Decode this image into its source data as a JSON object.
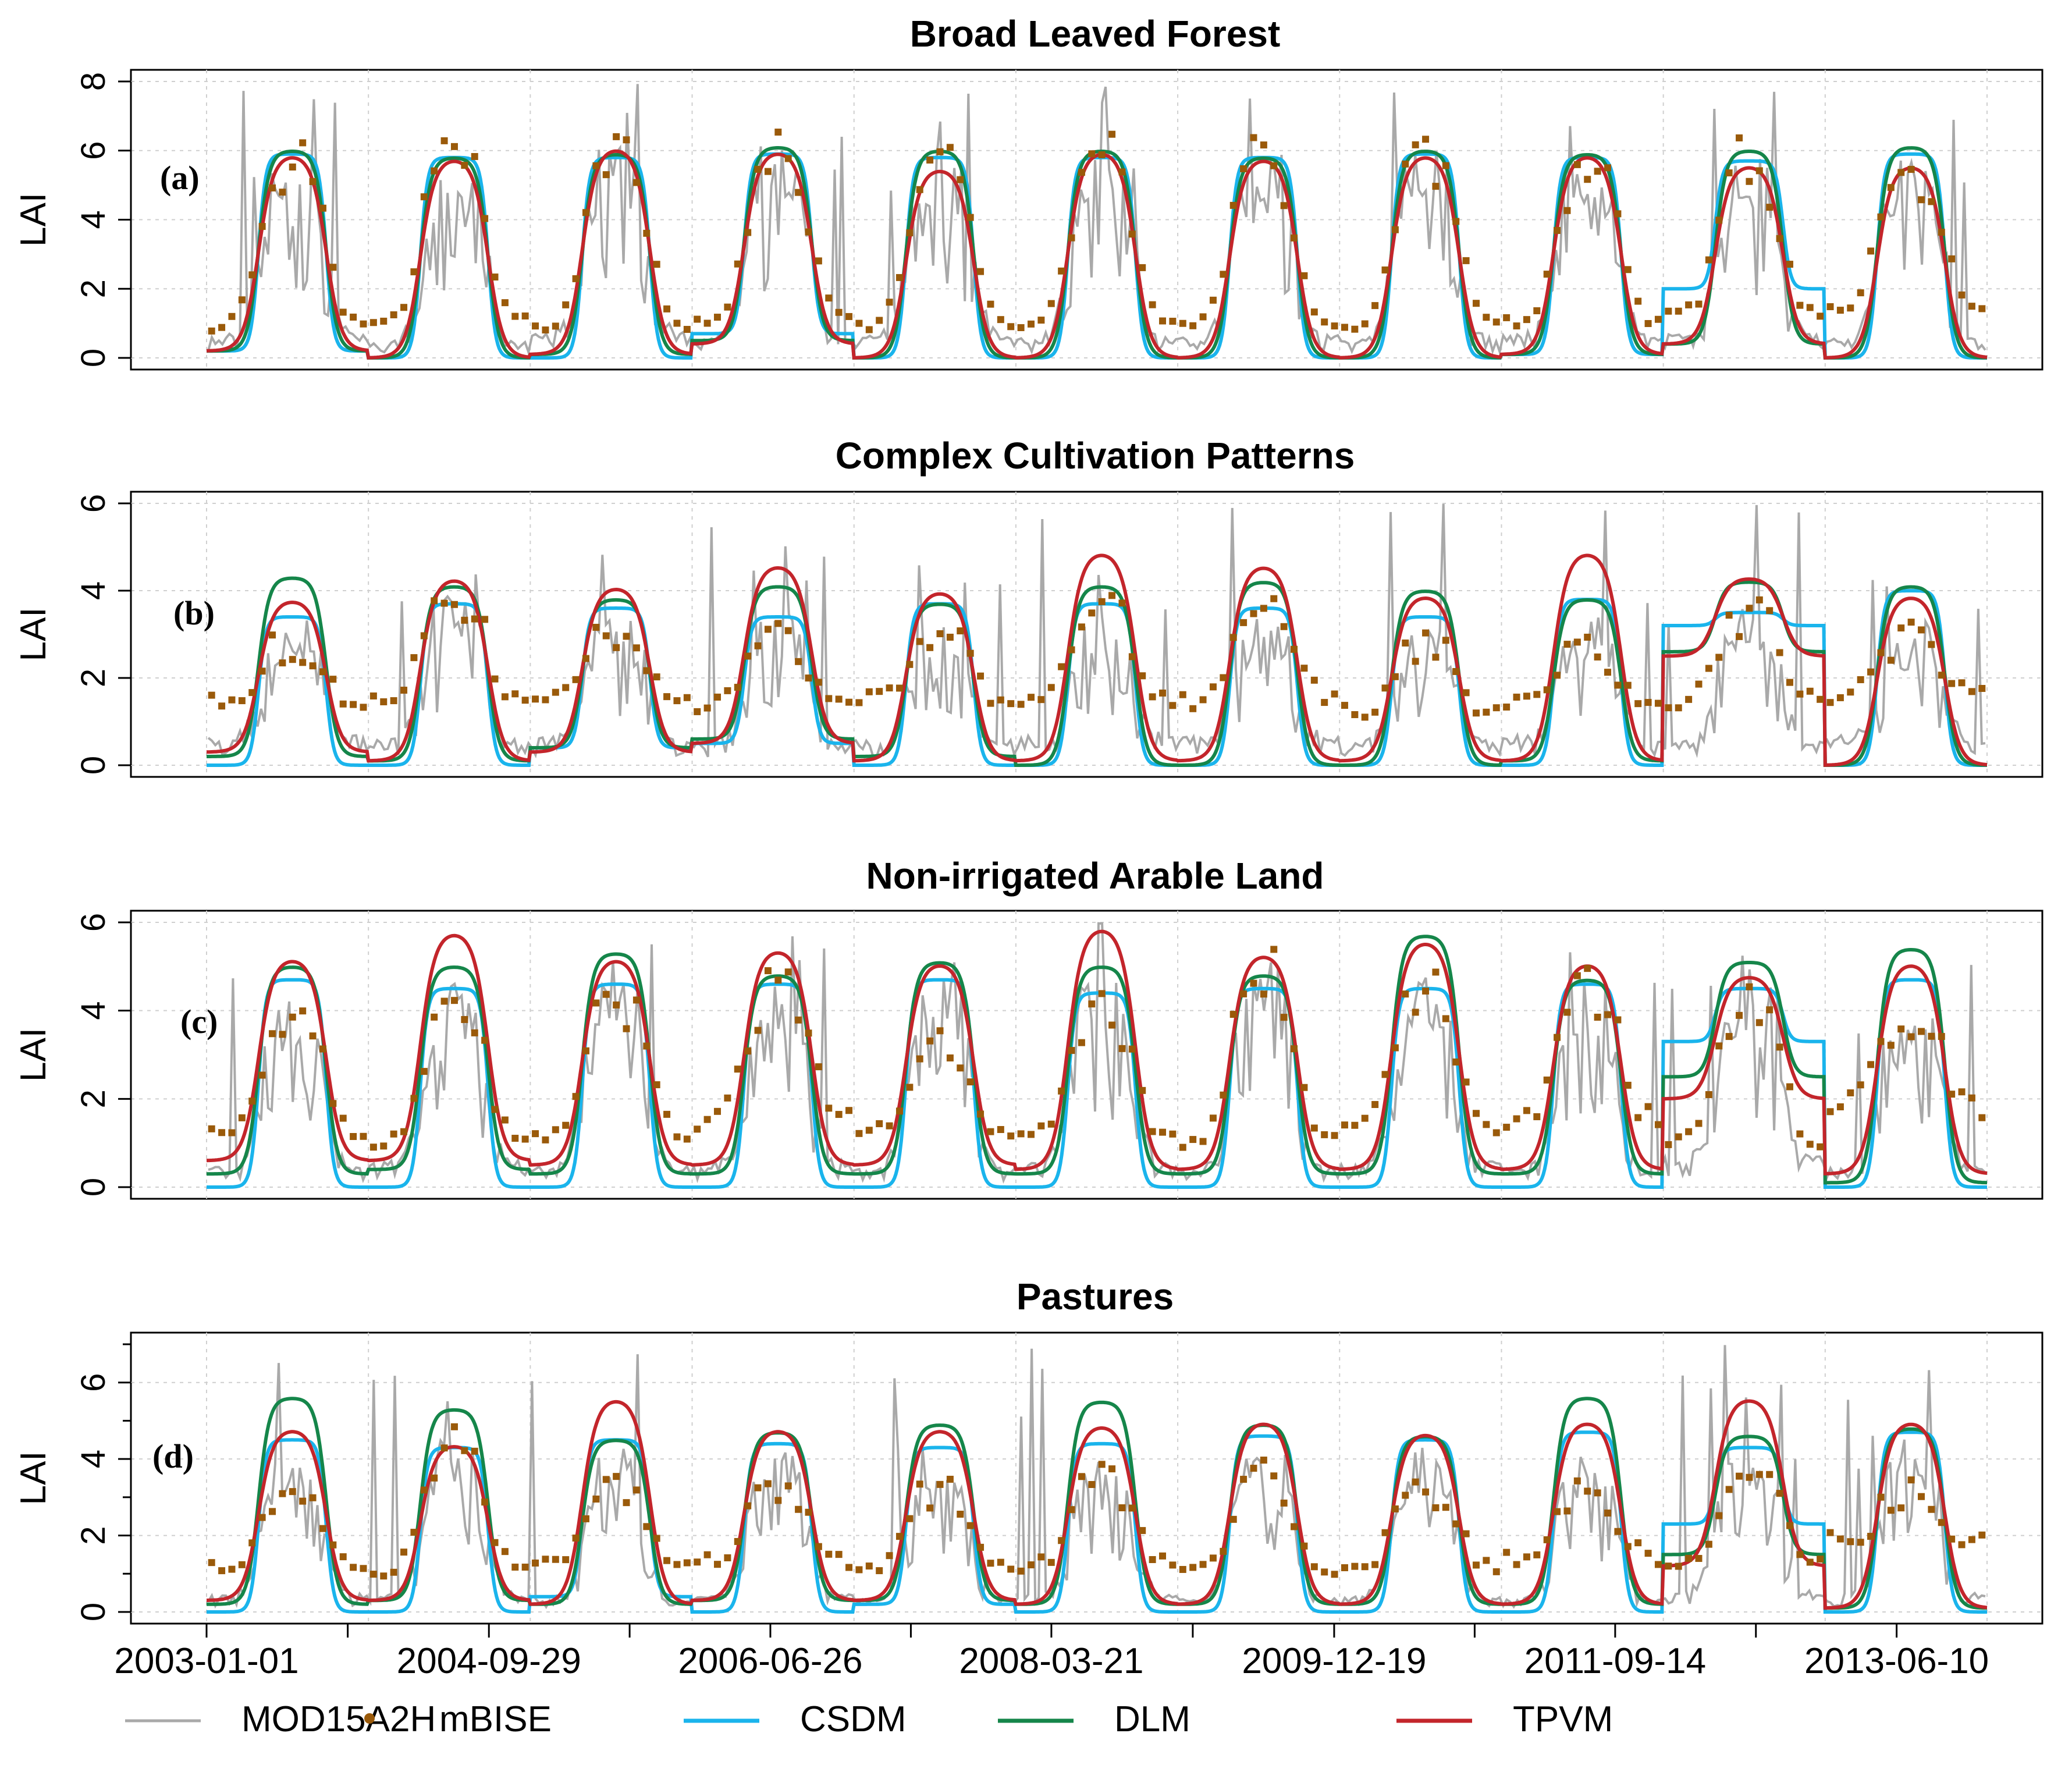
{
  "chart_data": {
    "type": "line",
    "x_range": [
      "2003-01-01",
      "2014-01-01"
    ],
    "x_tick_labels": [
      "2003-01-01",
      "2004-09-29",
      "2006-06-26",
      "2008-03-21",
      "2009-12-19",
      "2011-09-14",
      "2013-06-10"
    ],
    "ylabel": "LAI",
    "legend": {
      "placement": "bottom",
      "entries": [
        {
          "name": "MOD15A2H",
          "symbol": "line",
          "color": "#a9a9a9"
        },
        {
          "name": "mBISE",
          "symbol": "point",
          "color": "#9a5a0a"
        },
        {
          "name": "CSDM",
          "symbol": "line",
          "color": "#1ab4ec"
        },
        {
          "name": "DLM",
          "symbol": "line",
          "color": "#15864a"
        },
        {
          "name": "TPVM",
          "symbol": "line",
          "color": "#c3252b"
        }
      ]
    },
    "panels": [
      {
        "id": "a",
        "tag": "(a)",
        "title": "Broad Leaved Forest",
        "ylim": [
          0,
          8
        ],
        "yticks": [
          0,
          2,
          4,
          6,
          8
        ],
        "seasonal": {
          "MOD15A2H": {
            "base": [
              0.6,
              0.4,
              0.7,
              0.5,
              0.6,
              0.5,
              0.6,
              0.5,
              0.6,
              0.6,
              0.5
            ],
            "peak": [
              5.6,
              5.4,
              5.6,
              5.7,
              5.4,
              5.6,
              5.5,
              5.6,
              5.3,
              5.2,
              5.4
            ]
          },
          "mBISE": {
            "base": [
              0.9,
              1.1,
              0.8,
              1.0,
              0.9,
              1.0,
              1.0,
              0.9,
              1.0,
              1.2,
              1.5
            ],
            "peak": [
              5.8,
              5.9,
              6.0,
              6.0,
              5.8,
              5.9,
              5.9,
              6.0,
              5.7,
              5.8,
              5.6
            ]
          },
          "CSDM": {
            "base": [
              0.2,
              0.0,
              0.0,
              0.7,
              0.0,
              0.0,
              0.0,
              0.0,
              0.1,
              2.0,
              0.0
            ],
            "peak": [
              5.9,
              5.8,
              5.8,
              5.9,
              5.8,
              5.8,
              5.8,
              5.9,
              5.8,
              5.7,
              5.9
            ]
          },
          "DLM": {
            "base": [
              0.2,
              0.0,
              0.1,
              0.5,
              0.0,
              0.0,
              0.0,
              0.0,
              0.1,
              0.4,
              0.0
            ],
            "peak": [
              6.0,
              5.8,
              5.9,
              6.1,
              6.0,
              6.0,
              5.8,
              6.0,
              5.9,
              6.0,
              6.1
            ]
          },
          "TPVM": {
            "base": [
              0.2,
              0.0,
              0.1,
              0.4,
              0.0,
              0.0,
              0.0,
              0.0,
              0.1,
              0.4,
              0.0
            ],
            "peak": [
              5.9,
              5.8,
              6.1,
              6.0,
              5.5,
              6.0,
              5.8,
              5.9,
              5.9,
              5.6,
              5.6
            ]
          }
        }
      },
      {
        "id": "b",
        "tag": "(b)",
        "title": "Complex Cultivation Patterns",
        "ylim": [
          0,
          6
        ],
        "yticks": [
          0,
          2,
          4,
          6
        ],
        "seasonal": {
          "MOD15A2H": {
            "base": [
              0.6,
              0.5,
              0.6,
              0.5,
              0.5,
              0.6,
              0.6,
              0.5,
              0.6,
              0.5,
              0.6
            ],
            "peak": [
              3.0,
              3.5,
              3.1,
              3.2,
              3.0,
              3.1,
              3.2,
              2.9,
              3.0,
              3.2,
              3.0
            ]
          },
          "mBISE": {
            "base": [
              1.5,
              1.5,
              1.4,
              1.3,
              1.5,
              1.4,
              1.5,
              1.2,
              1.4,
              1.5,
              1.6
            ],
            "peak": [
              2.8,
              3.9,
              3.1,
              3.0,
              3.0,
              3.6,
              3.5,
              2.8,
              2.6,
              3.4,
              2.9
            ]
          },
          "CSDM": {
            "base": [
              0.0,
              0.0,
              0.4,
              0.5,
              0.0,
              0.0,
              0.0,
              0.0,
              0.0,
              3.2,
              0.0
            ],
            "peak": [
              3.4,
              3.7,
              3.6,
              3.4,
              3.7,
              3.7,
              3.6,
              3.4,
              3.8,
              3.5,
              4.0
            ]
          },
          "DLM": {
            "base": [
              0.2,
              0.1,
              0.4,
              0.6,
              0.2,
              0.0,
              0.0,
              0.0,
              0.1,
              2.6,
              0.0
            ],
            "peak": [
              4.3,
              4.1,
              3.8,
              4.1,
              3.7,
              4.1,
              4.2,
              4.0,
              3.8,
              4.2,
              4.1
            ]
          },
          "TPVM": {
            "base": [
              0.3,
              0.1,
              0.3,
              0.5,
              0.1,
              0.1,
              0.1,
              0.1,
              0.1,
              2.5,
              0.0
            ],
            "peak": [
              3.8,
              4.3,
              4.1,
              4.6,
              4.0,
              4.9,
              4.6,
              3.9,
              4.9,
              4.3,
              3.9
            ]
          }
        }
      },
      {
        "id": "c",
        "tag": "(c)",
        "title": "Non-irrigated Arable Land",
        "ylim": [
          0,
          6
        ],
        "yticks": [
          0,
          2,
          4,
          6
        ],
        "seasonal": {
          "MOD15A2H": {
            "base": [
              0.4,
              0.5,
              0.4,
              0.5,
              0.4,
              0.5,
              0.4,
              0.5,
              0.4,
              0.6,
              0.4
            ],
            "peak": [
              3.8,
              4.2,
              4.5,
              4.4,
              4.6,
              4.4,
              4.8,
              4.2,
              4.3,
              4.4,
              4.0
            ]
          },
          "mBISE": {
            "base": [
              1.2,
              1.0,
              1.2,
              1.5,
              1.2,
              1.1,
              1.0,
              1.3,
              1.5,
              1.0,
              1.8
            ],
            "peak": [
              3.9,
              4.2,
              4.2,
              4.5,
              3.5,
              4.1,
              5.0,
              4.5,
              4.6,
              4.3,
              4.0
            ]
          },
          "CSDM": {
            "base": [
              0.0,
              0.0,
              0.0,
              0.0,
              0.0,
              0.0,
              0.0,
              0.0,
              0.0,
              3.3,
              0.0
            ],
            "peak": [
              4.7,
              4.5,
              4.6,
              4.6,
              4.7,
              4.4,
              4.5,
              4.5,
              4.6,
              4.5,
              4.7
            ]
          },
          "DLM": {
            "base": [
              0.3,
              0.4,
              0.3,
              0.3,
              0.3,
              0.3,
              0.3,
              0.3,
              0.3,
              2.5,
              0.1
            ],
            "peak": [
              5.0,
              5.0,
              5.3,
              4.8,
              5.1,
              5.0,
              4.8,
              5.7,
              4.7,
              5.1,
              5.4
            ]
          },
          "TPVM": {
            "base": [
              0.6,
              0.6,
              0.5,
              0.5,
              0.5,
              0.4,
              0.4,
              0.4,
              0.4,
              2.0,
              0.3
            ],
            "peak": [
              5.2,
              5.8,
              5.2,
              5.4,
              5.1,
              5.9,
              5.3,
              5.6,
              5.1,
              4.8,
              5.1
            ]
          }
        }
      },
      {
        "id": "d",
        "tag": "(d)",
        "title": "Pastures",
        "ylim": [
          0,
          7
        ],
        "yticks": [
          0,
          2,
          4,
          6
        ],
        "seasonal": {
          "MOD15A2H": {
            "base": [
              0.4,
              0.4,
              0.3,
              0.4,
              0.3,
              0.4,
              0.3,
              0.4,
              0.3,
              0.5,
              0.4
            ],
            "peak": [
              3.6,
              4.2,
              3.8,
              3.9,
              4.0,
              4.1,
              4.2,
              3.9,
              3.8,
              4.5,
              4.0
            ]
          },
          "mBISE": {
            "base": [
              1.2,
              1.0,
              1.2,
              1.3,
              1.1,
              1.2,
              1.0,
              1.2,
              1.4,
              1.2,
              1.8
            ],
            "peak": [
              3.0,
              4.5,
              3.4,
              3.2,
              3.3,
              3.5,
              3.6,
              3.3,
              3.1,
              3.8,
              3.2
            ]
          },
          "CSDM": {
            "base": [
              0.0,
              0.0,
              0.4,
              0.0,
              0.2,
              0.0,
              0.0,
              0.0,
              0.0,
              2.3,
              0.0
            ],
            "peak": [
              4.5,
              4.3,
              4.5,
              4.4,
              4.3,
              4.4,
              4.6,
              4.5,
              4.7,
              4.3,
              4.7
            ]
          },
          "DLM": {
            "base": [
              0.2,
              0.3,
              0.2,
              0.3,
              0.3,
              0.2,
              0.2,
              0.2,
              0.2,
              1.5,
              0.1
            ],
            "peak": [
              5.6,
              5.3,
              4.5,
              4.7,
              4.9,
              5.5,
              4.9,
              4.6,
              5.6,
              4.6,
              4.8
            ]
          },
          "TPVM": {
            "base": [
              0.3,
              0.3,
              0.2,
              0.3,
              0.3,
              0.2,
              0.2,
              0.2,
              0.2,
              1.2,
              0.1
            ],
            "peak": [
              4.8,
              4.4,
              5.6,
              4.8,
              4.8,
              4.9,
              5.0,
              4.7,
              5.0,
              5.6,
              5.0
            ]
          }
        }
      }
    ]
  }
}
